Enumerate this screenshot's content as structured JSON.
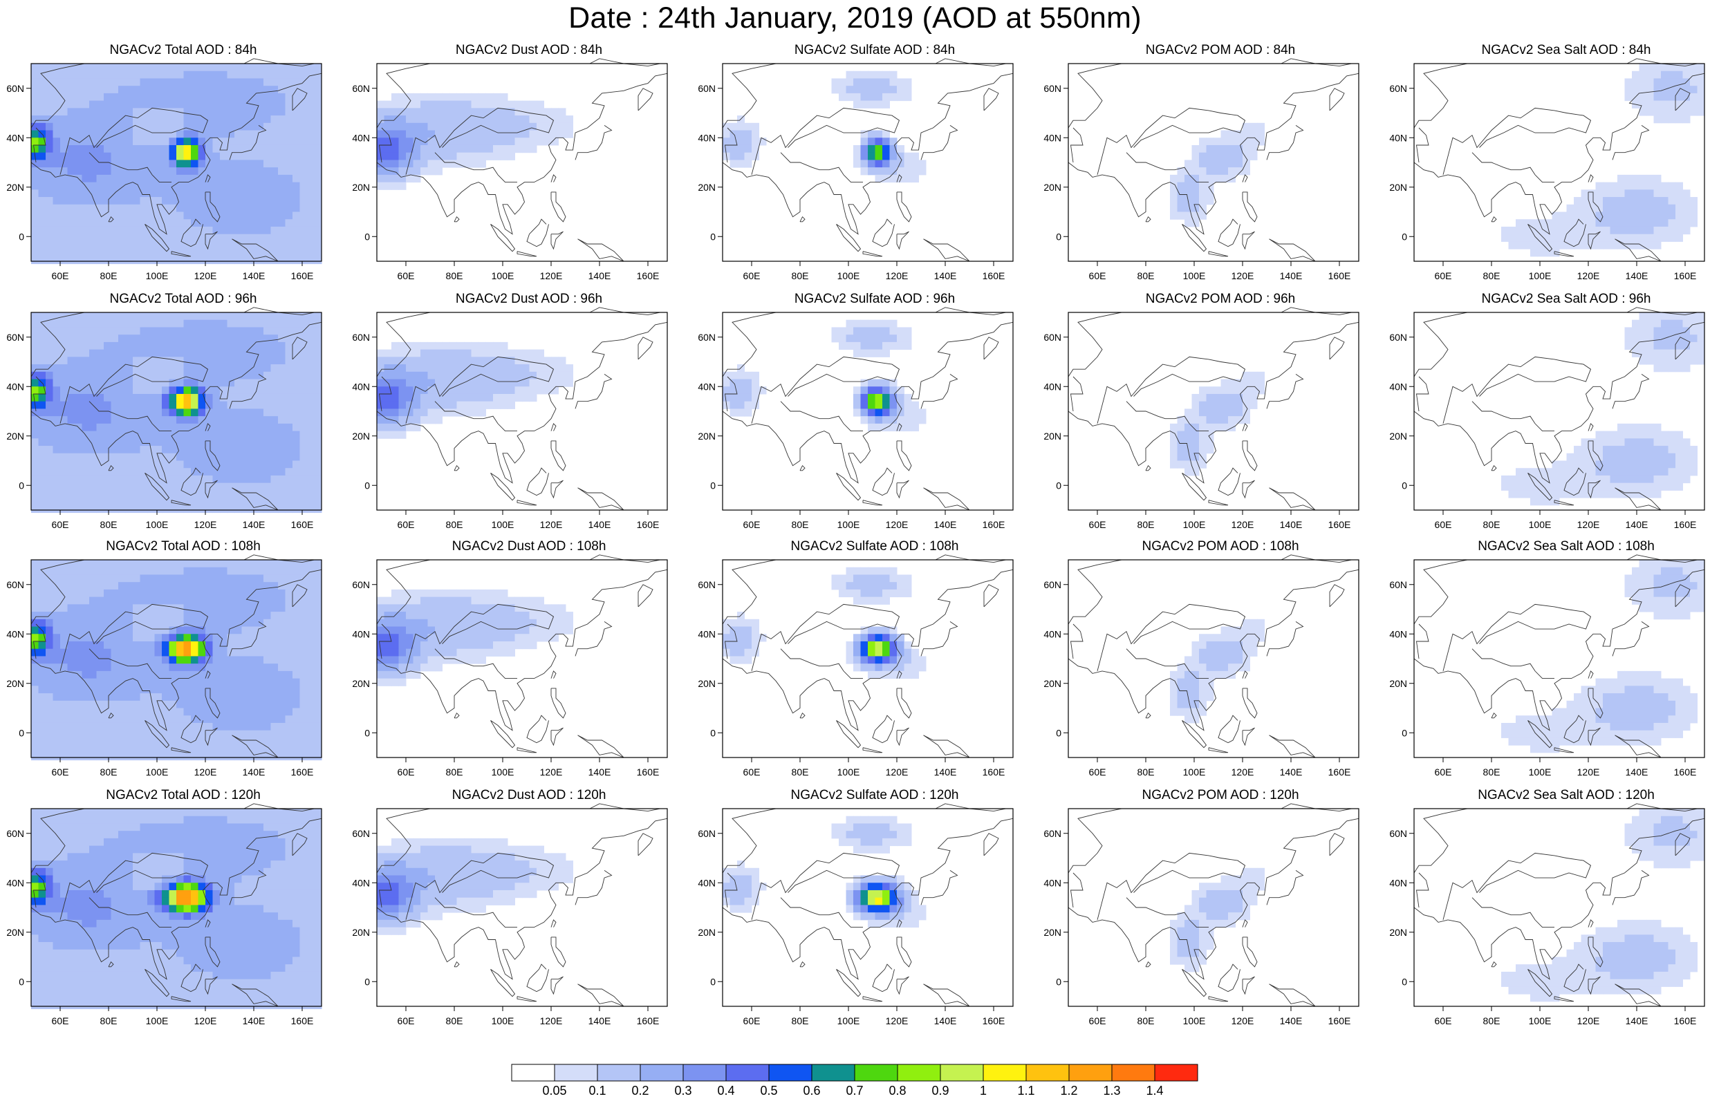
{
  "title": "Date : 24th January, 2019 (AOD at 550nm)",
  "chart_data": {
    "type": "heatmap",
    "map_region": "Asia",
    "lon_range": [
      48,
      168
    ],
    "lat_range": [
      -10,
      70
    ],
    "lon_ticks": [
      "60E",
      "80E",
      "100E",
      "120E",
      "140E",
      "160E"
    ],
    "lat_ticks": [
      "60N",
      "40N",
      "20N",
      "0"
    ],
    "species": [
      "Total",
      "Dust",
      "Sulfate",
      "POM",
      "Sea Salt"
    ],
    "forecast_hours": [
      "84h",
      "96h",
      "108h",
      "120h"
    ],
    "panels": [
      {
        "row": 0,
        "col": 0,
        "species": "Total",
        "title": "NGACv2 Total AOD : 84h"
      },
      {
        "row": 0,
        "col": 1,
        "species": "Dust",
        "title": "NGACv2 Dust AOD : 84h"
      },
      {
        "row": 0,
        "col": 2,
        "species": "Sulfate",
        "title": "NGACv2 Sulfate AOD : 84h"
      },
      {
        "row": 0,
        "col": 3,
        "species": "POM",
        "title": "NGACv2 POM AOD : 84h"
      },
      {
        "row": 0,
        "col": 4,
        "species": "Sea Salt",
        "title": "NGACv2 Sea Salt AOD : 84h"
      },
      {
        "row": 1,
        "col": 0,
        "species": "Total",
        "title": "NGACv2 Total AOD : 96h"
      },
      {
        "row": 1,
        "col": 1,
        "species": "Dust",
        "title": "NGACv2 Dust AOD : 96h"
      },
      {
        "row": 1,
        "col": 2,
        "species": "Sulfate",
        "title": "NGACv2 Sulfate AOD : 96h"
      },
      {
        "row": 1,
        "col": 3,
        "species": "POM",
        "title": "NGACv2 POM AOD : 96h"
      },
      {
        "row": 1,
        "col": 4,
        "species": "Sea Salt",
        "title": "NGACv2 Sea Salt AOD : 96h"
      },
      {
        "row": 2,
        "col": 0,
        "species": "Total",
        "title": "NGACv2 Total AOD : 108h"
      },
      {
        "row": 2,
        "col": 1,
        "species": "Dust",
        "title": "NGACv2 Dust AOD : 108h"
      },
      {
        "row": 2,
        "col": 2,
        "species": "Sulfate",
        "title": "NGACv2 Sulfate AOD : 108h"
      },
      {
        "row": 2,
        "col": 3,
        "species": "POM",
        "title": "NGACv2 POM AOD : 108h"
      },
      {
        "row": 2,
        "col": 4,
        "species": "Sea Salt",
        "title": "NGACv2 Sea Salt AOD : 108h"
      },
      {
        "row": 3,
        "col": 0,
        "species": "Total",
        "title": "NGACv2 Total AOD : 120h"
      },
      {
        "row": 3,
        "col": 1,
        "species": "Dust",
        "title": "NGACv2 Dust AOD : 120h"
      },
      {
        "row": 3,
        "col": 2,
        "species": "Sulfate",
        "title": "NGACv2 Sulfate AOD : 120h"
      },
      {
        "row": 3,
        "col": 3,
        "species": "POM",
        "title": "NGACv2 POM AOD : 120h"
      },
      {
        "row": 3,
        "col": 4,
        "species": "Sea Salt",
        "title": "NGACv2 Sea Salt  AOD : 120h"
      }
    ],
    "colorbar": {
      "labels": [
        "0.05",
        "0.1",
        "0.2",
        "0.3",
        "0.4",
        "0.5",
        "0.6",
        "0.7",
        "0.8",
        "0.9",
        "1",
        "1.1",
        "1.2",
        "1.3",
        "1.4"
      ],
      "colors": [
        "#ffffff",
        "#d4ddf9",
        "#b4c5f6",
        "#96aef4",
        "#7c93f1",
        "#5c6df0",
        "#0f55f2",
        "#0f918f",
        "#4ed70f",
        "#90ef0f",
        "#c5f250",
        "#fff20f",
        "#ffc20f",
        "#ffa00f",
        "#ff7a0f",
        "#ff2a0f"
      ]
    },
    "features": {
      "Total": [
        {
          "lon": 110,
          "lat": 33,
          "value": 0.85,
          "description": "high AOD over eastern China"
        },
        {
          "lon": 50,
          "lat": 38,
          "value": 0.7,
          "description": "high AOD over Middle East"
        }
      ],
      "Dust": [
        {
          "lon": 55,
          "lat": 35,
          "value": 0.4,
          "description": "dust over Middle East / Iran"
        }
      ],
      "Sulfate": [
        {
          "lon": 110,
          "lat": 33,
          "value": 0.75,
          "description": "sulfate over eastern China"
        }
      ],
      "POM": [
        {
          "lon": 110,
          "lat": 30,
          "value": 0.2,
          "description": "POM over China and Southeast Asia"
        }
      ],
      "Sea Salt": [
        {
          "lon": 135,
          "lat": 10,
          "value": 0.2,
          "description": "sea salt over western Pacific"
        }
      ]
    }
  }
}
